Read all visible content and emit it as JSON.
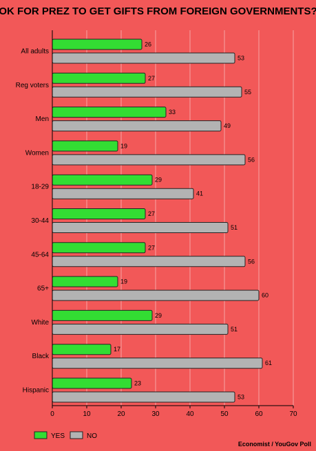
{
  "chart_data": {
    "type": "bar",
    "orientation": "horizontal",
    "title": "OK FOR PREZ TO GET GIFTS FROM FOREIGN GOVERNMENTS?",
    "categories": [
      "All adults",
      "Reg voters",
      "Men",
      "Women",
      "18-29",
      "30-44",
      "45-64",
      "65+",
      "White",
      "Black",
      "Hispanic"
    ],
    "series": [
      {
        "name": "YES",
        "color": "#33dd33",
        "values": [
          26,
          27,
          33,
          19,
          29,
          27,
          27,
          19,
          29,
          17,
          23
        ]
      },
      {
        "name": "NO",
        "color": "#b3b3b3",
        "values": [
          53,
          55,
          49,
          56,
          41,
          51,
          56,
          60,
          51,
          61,
          53
        ]
      }
    ],
    "xlim": [
      0,
      70
    ],
    "xticks": [
      0,
      10,
      20,
      30,
      40,
      50,
      60,
      70
    ],
    "grid": true,
    "legend_position": "bottom-left",
    "source": "Economist / YouGov Poll"
  }
}
